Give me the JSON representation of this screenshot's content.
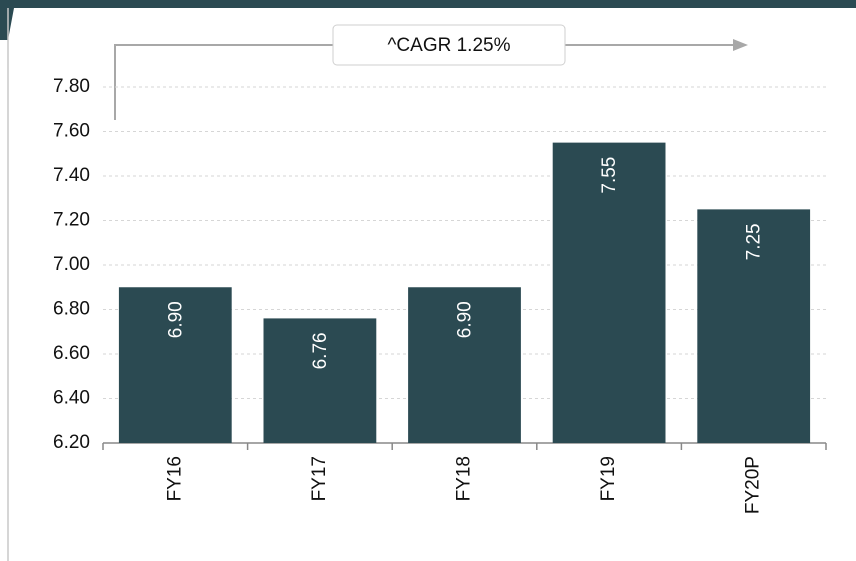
{
  "chart_data": {
    "type": "bar",
    "annotation": "^CAGR 1.25%",
    "categories": [
      "FY16",
      "FY17",
      "FY18",
      "FY19",
      "FY20P"
    ],
    "values": [
      6.9,
      6.76,
      6.9,
      7.55,
      7.25
    ],
    "value_labels": [
      "6.90",
      "6.76",
      "6.90",
      "7.55",
      "7.25"
    ],
    "color": "#2b4a52",
    "ylim": [
      6.2,
      7.8
    ],
    "yticks": [
      {
        "value": 6.2,
        "label": "6.20"
      },
      {
        "value": 6.4,
        "label": "6.40"
      },
      {
        "value": 6.6,
        "label": "6.60"
      },
      {
        "value": 6.8,
        "label": "6.80"
      },
      {
        "value": 7.0,
        "label": "7.00"
      },
      {
        "value": 7.2,
        "label": "7.20"
      },
      {
        "value": 7.4,
        "label": "7.40"
      },
      {
        "value": 7.6,
        "label": "7.60"
      },
      {
        "value": 7.8,
        "label": "7.80"
      }
    ],
    "grid": true
  }
}
